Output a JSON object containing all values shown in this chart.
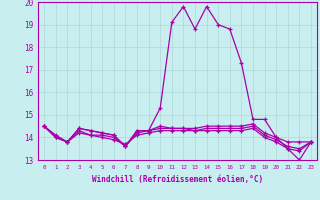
{
  "xlabel": "Windchill (Refroidissement éolien,°C)",
  "ylabel": "",
  "xlim": [
    -0.5,
    23.5
  ],
  "ylim": [
    13,
    20
  ],
  "yticks": [
    13,
    14,
    15,
    16,
    17,
    18,
    19,
    20
  ],
  "xticks": [
    0,
    1,
    2,
    3,
    4,
    5,
    6,
    7,
    8,
    9,
    10,
    11,
    12,
    13,
    14,
    15,
    16,
    17,
    18,
    19,
    20,
    21,
    22,
    23
  ],
  "background_color": "#c8eef0",
  "grid_color": "#b0d8d8",
  "line_color": "#aa00aa",
  "lines": [
    [
      14.5,
      14.0,
      13.8,
      14.4,
      14.3,
      14.2,
      14.1,
      13.6,
      14.3,
      14.3,
      15.3,
      19.1,
      19.8,
      18.8,
      19.8,
      19.0,
      18.8,
      17.3,
      14.8,
      14.8,
      14.0,
      13.5,
      13.0,
      13.8
    ],
    [
      14.5,
      14.0,
      13.8,
      14.4,
      14.3,
      14.2,
      14.1,
      13.6,
      14.3,
      14.3,
      14.5,
      14.4,
      14.4,
      14.4,
      14.5,
      14.5,
      14.5,
      14.5,
      14.6,
      14.2,
      14.0,
      13.8,
      13.8,
      13.8
    ],
    [
      14.5,
      14.0,
      13.8,
      14.2,
      14.1,
      14.1,
      14.0,
      13.6,
      14.2,
      14.3,
      14.4,
      14.4,
      14.4,
      14.3,
      14.4,
      14.4,
      14.4,
      14.4,
      14.5,
      14.1,
      13.9,
      13.6,
      13.5,
      13.8
    ],
    [
      14.5,
      14.1,
      13.8,
      14.3,
      14.1,
      14.0,
      13.9,
      13.7,
      14.1,
      14.2,
      14.3,
      14.3,
      14.3,
      14.3,
      14.3,
      14.3,
      14.3,
      14.3,
      14.4,
      14.0,
      13.8,
      13.5,
      13.4,
      13.8
    ]
  ]
}
